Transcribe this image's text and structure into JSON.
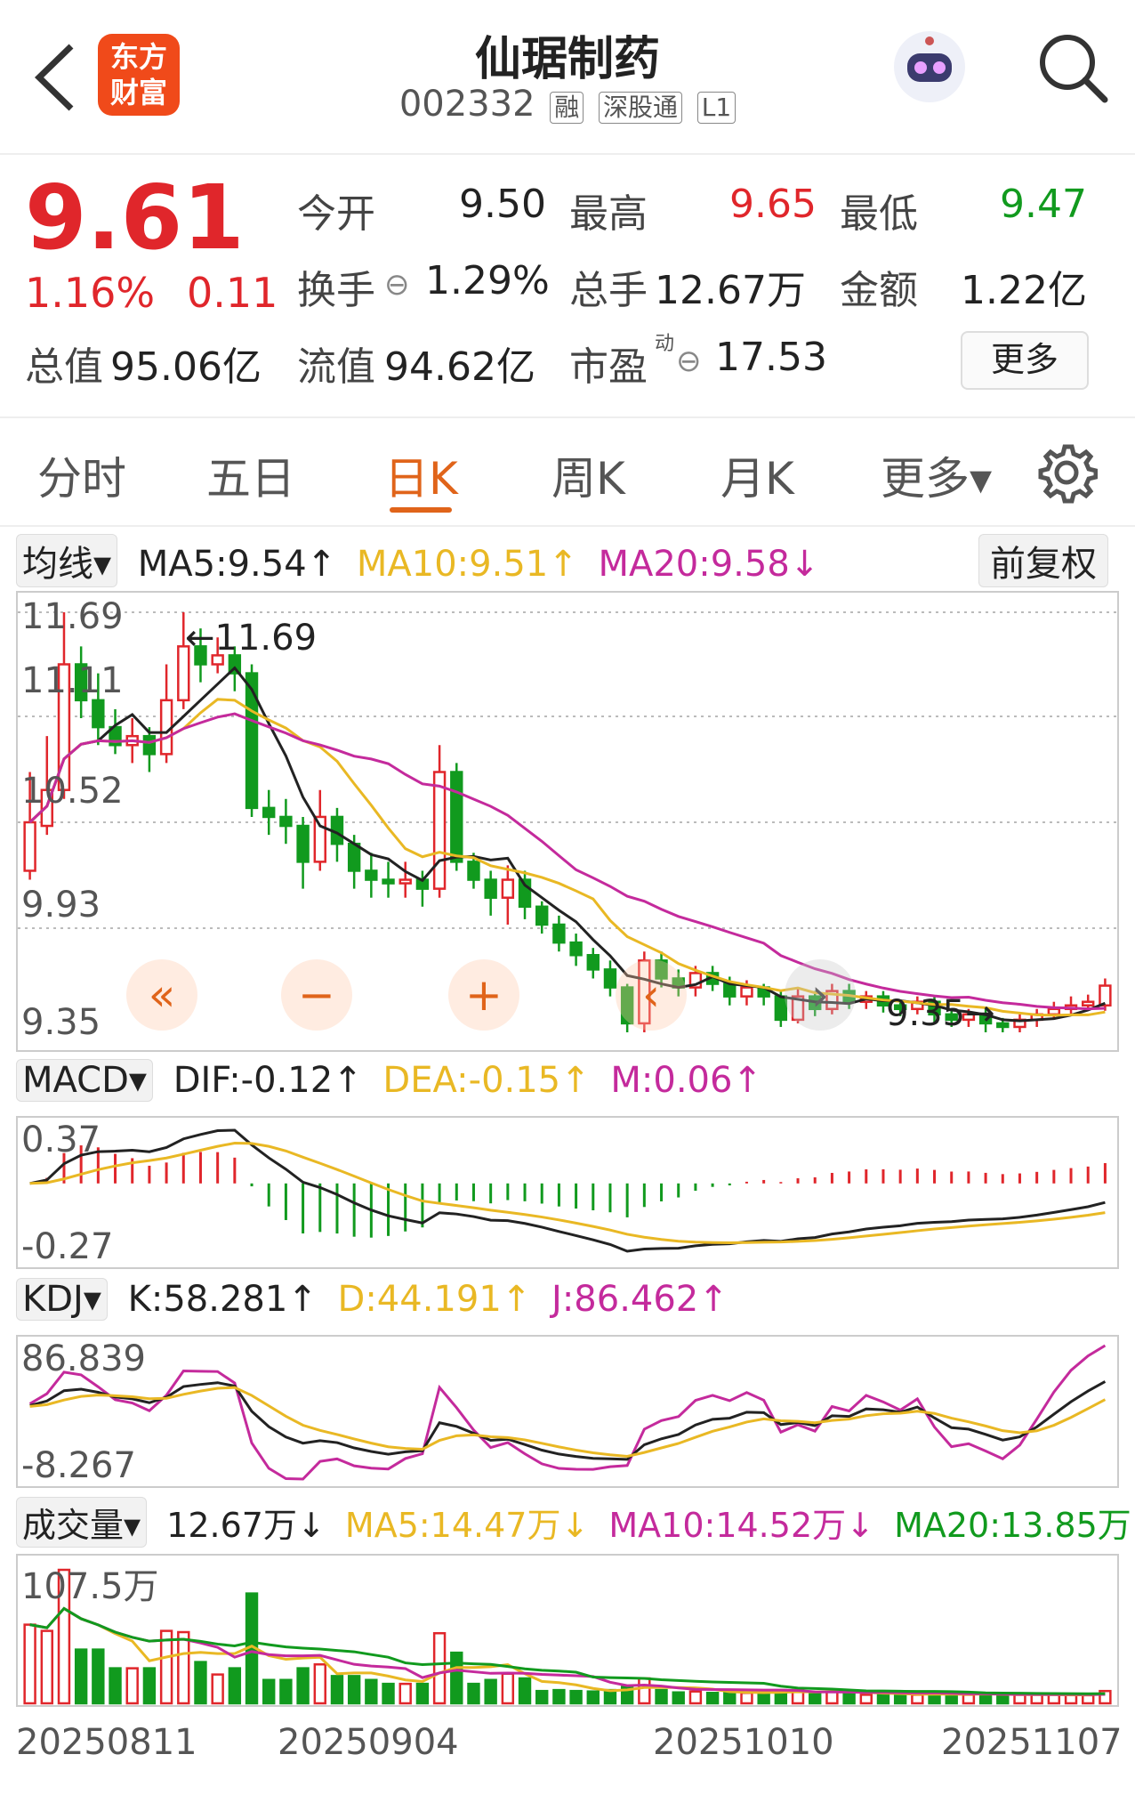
{
  "header": {
    "back_icon": "chevron-left-icon",
    "logo_line1": "东方",
    "logo_line2": "财富",
    "stock_name": "仙琚制药",
    "stock_code": "002332",
    "badges": [
      "融",
      "深股通",
      "L1"
    ],
    "search_icon": "search-icon"
  },
  "quote": {
    "price": "9.61",
    "change_pct": "1.16%",
    "change_amt": "0.11",
    "open_label": "今开",
    "open_value": "9.50",
    "high_label": "最高",
    "high_value": "9.65",
    "low_label": "最低",
    "low_value": "9.47",
    "turnover_label": "换手",
    "turnover_value": "1.29%",
    "volume_label": "总手",
    "volume_value": "12.67万",
    "amount_label": "金额",
    "amount_value": "1.22亿",
    "mktcap_label": "总值",
    "mktcap_value": "95.06亿",
    "float_label": "流值",
    "float_value": "94.62亿",
    "pe_label": "市盈",
    "pe_sup": "动",
    "pe_value": "17.53",
    "more_label": "更多"
  },
  "tabs": [
    "分时",
    "五日",
    "日K",
    "周K",
    "月K",
    "更多▾"
  ],
  "active_tab": "日K",
  "ma_row": {
    "dropdown": "均线▾",
    "ma5": "MA5:9.54↑",
    "ma10": "MA10:9.51↑",
    "ma20": "MA20:9.58↓",
    "adjust": "前复权"
  },
  "kline": {
    "y_labels": [
      "11.69",
      "11.11",
      "10.52",
      "9.93",
      "9.35"
    ],
    "high_marker": "←11.69",
    "low_marker": "9.35→",
    "nav_buttons": [
      "«",
      "−",
      "+",
      "‹",
      "›"
    ]
  },
  "macd_row": {
    "dropdown": "MACD▾",
    "dif": "DIF:-0.12↑",
    "dea": "DEA:-0.15↑",
    "m": "M:0.06↑",
    "y_top": "0.37",
    "y_bottom": "-0.27"
  },
  "kdj_row": {
    "dropdown": "KDJ▾",
    "k": "K:58.281↑",
    "d": "D:44.191↑",
    "j": "J:86.462↑",
    "y_top": "86.839",
    "y_bottom": "-8.267"
  },
  "vol_row": {
    "dropdown": "成交量▾",
    "vol": "12.67万↓",
    "ma5": "MA5:14.47万↓",
    "ma10": "MA10:14.52万↓",
    "ma20": "MA20:13.85万↓",
    "y_top": "107.5万"
  },
  "dates": [
    "20250811",
    "20250904",
    "20251010",
    "20251107"
  ],
  "colors": {
    "up": "#e0262b",
    "down": "#119a1e",
    "ma5": "#222222",
    "ma10": "#e9b824",
    "ma20": "#c42a9c",
    "accent": "#e0641a"
  },
  "chart_data": {
    "type": "candlestick",
    "ylim": [
      9.35,
      11.69
    ],
    "candles": [
      [
        10.25,
        10.52,
        10.8,
        10.2
      ],
      [
        10.5,
        10.7,
        11.0,
        10.45
      ],
      [
        10.7,
        11.4,
        11.69,
        10.65
      ],
      [
        11.4,
        11.2,
        11.5,
        11.1
      ],
      [
        11.2,
        11.05,
        11.35,
        10.95
      ],
      [
        11.05,
        10.95,
        11.15,
        10.9
      ],
      [
        10.95,
        11.0,
        11.1,
        10.85
      ],
      [
        11.0,
        10.9,
        11.05,
        10.8
      ],
      [
        10.9,
        11.2,
        11.4,
        10.85
      ],
      [
        11.2,
        11.5,
        11.69,
        11.15
      ],
      [
        11.5,
        11.4,
        11.6,
        11.3
      ],
      [
        11.4,
        11.45,
        11.55,
        11.35
      ],
      [
        11.45,
        11.35,
        11.5,
        11.25
      ],
      [
        11.35,
        10.6,
        11.4,
        10.55
      ],
      [
        10.6,
        10.55,
        10.7,
        10.45
      ],
      [
        10.55,
        10.5,
        10.65,
        10.4
      ],
      [
        10.5,
        10.3,
        10.55,
        10.15
      ],
      [
        10.3,
        10.55,
        10.7,
        10.25
      ],
      [
        10.55,
        10.4,
        10.6,
        10.3
      ],
      [
        10.4,
        10.25,
        10.45,
        10.15
      ],
      [
        10.25,
        10.2,
        10.35,
        10.1
      ],
      [
        10.2,
        10.18,
        10.3,
        10.1
      ],
      [
        10.18,
        10.2,
        10.3,
        10.1
      ],
      [
        10.2,
        10.15,
        10.25,
        10.05
      ],
      [
        10.15,
        10.8,
        10.95,
        10.1
      ],
      [
        10.8,
        10.3,
        10.85,
        10.25
      ],
      [
        10.3,
        10.2,
        10.35,
        10.15
      ],
      [
        10.2,
        10.1,
        10.25,
        10.0
      ],
      [
        10.1,
        10.2,
        10.28,
        9.95
      ],
      [
        10.2,
        10.05,
        10.25,
        9.98
      ],
      [
        10.05,
        9.95,
        10.08,
        9.9
      ],
      [
        9.95,
        9.85,
        10.0,
        9.8
      ],
      [
        9.85,
        9.78,
        9.9,
        9.72
      ],
      [
        9.78,
        9.7,
        9.82,
        9.65
      ],
      [
        9.7,
        9.6,
        9.75,
        9.55
      ],
      [
        9.6,
        9.4,
        9.62,
        9.35
      ],
      [
        9.4,
        9.75,
        9.8,
        9.35
      ],
      [
        9.75,
        9.65,
        9.8,
        9.6
      ],
      [
        9.65,
        9.6,
        9.7,
        9.55
      ],
      [
        9.6,
        9.68,
        9.72,
        9.55
      ],
      [
        9.68,
        9.62,
        9.72,
        9.58
      ],
      [
        9.62,
        9.55,
        9.66,
        9.5
      ],
      [
        9.55,
        9.6,
        9.64,
        9.5
      ],
      [
        9.6,
        9.55,
        9.62,
        9.5
      ],
      [
        9.55,
        9.42,
        9.58,
        9.38
      ],
      [
        9.42,
        9.55,
        9.6,
        9.4
      ],
      [
        9.55,
        9.48,
        9.58,
        9.44
      ],
      [
        9.48,
        9.58,
        9.62,
        9.45
      ],
      [
        9.58,
        9.52,
        9.62,
        9.48
      ],
      [
        9.52,
        9.55,
        9.58,
        9.48
      ],
      [
        9.55,
        9.5,
        9.58,
        9.46
      ],
      [
        9.5,
        9.48,
        9.53,
        9.44
      ],
      [
        9.48,
        9.52,
        9.55,
        9.45
      ],
      [
        9.52,
        9.45,
        9.55,
        9.4
      ],
      [
        9.45,
        9.42,
        9.48,
        9.38
      ],
      [
        9.42,
        9.45,
        9.48,
        9.38
      ],
      [
        9.45,
        9.4,
        9.48,
        9.35
      ],
      [
        9.4,
        9.38,
        9.43,
        9.35
      ],
      [
        9.38,
        9.42,
        9.45,
        9.35
      ],
      [
        9.42,
        9.45,
        9.48,
        9.38
      ],
      [
        9.45,
        9.48,
        9.52,
        9.42
      ],
      [
        9.48,
        9.5,
        9.55,
        9.45
      ],
      [
        9.5,
        9.52,
        9.56,
        9.47
      ],
      [
        9.5,
        9.61,
        9.65,
        9.47
      ]
    ]
  }
}
